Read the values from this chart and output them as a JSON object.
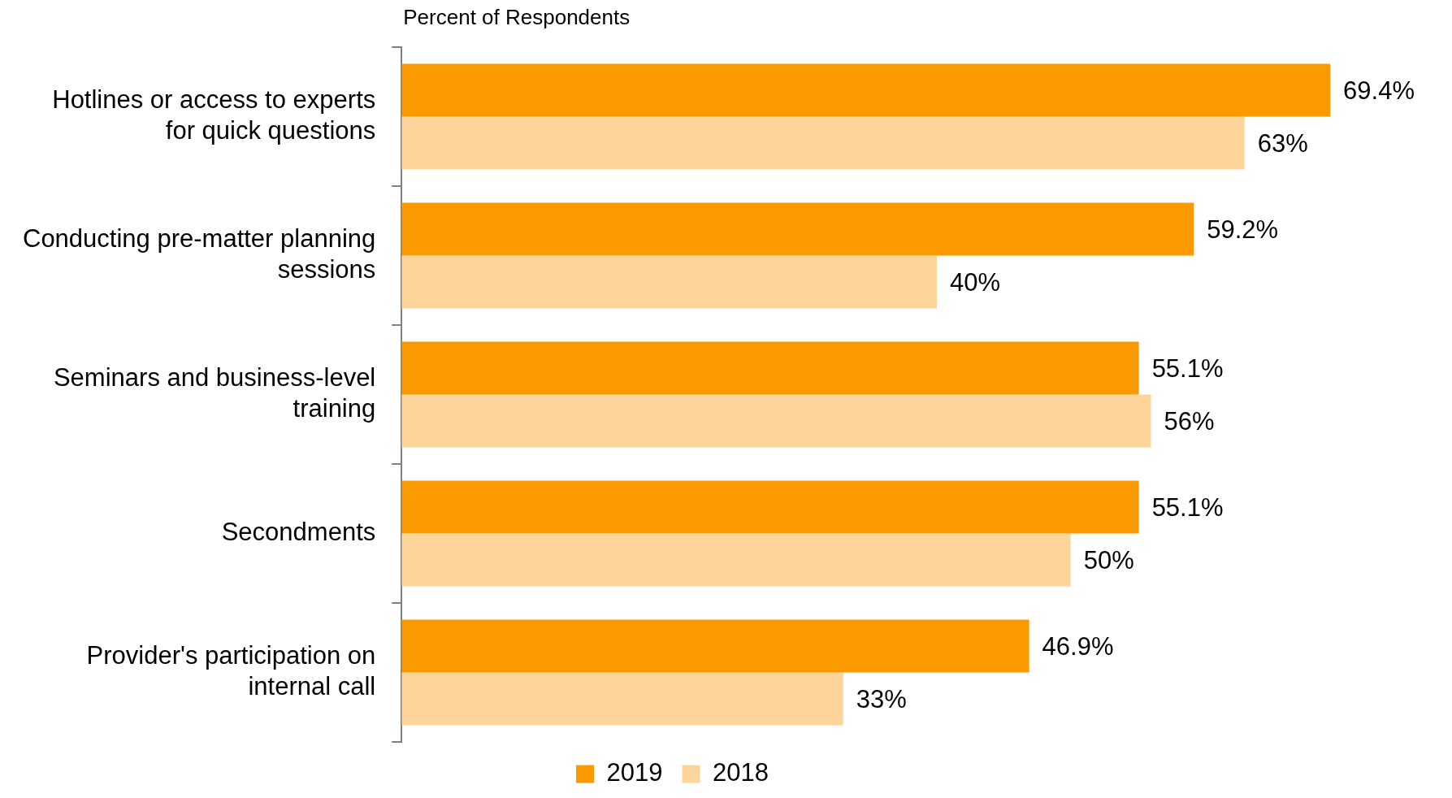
{
  "chart_data": {
    "type": "bar",
    "orientation": "horizontal",
    "xlabel": "Percent of Respondents",
    "categories": [
      "Hotlines or access to experts for quick questions",
      "Conducting pre-matter planning sessions",
      "Seminars and business-level training",
      "Secondments",
      "Provider's participation on internal call"
    ],
    "series": [
      {
        "name": "2019",
        "color": "#fb9a00",
        "values": [
          69.4,
          59.2,
          55.1,
          55.1,
          46.9
        ],
        "value_labels": [
          "69.4%",
          "59.2%",
          "55.1%",
          "55.1%",
          "46.9%"
        ]
      },
      {
        "name": "2018",
        "color": "#fdd59a",
        "values": [
          63,
          40,
          56,
          50,
          33
        ],
        "value_labels": [
          "63%",
          "40%",
          "56%",
          "50%",
          "33%"
        ]
      }
    ],
    "tick_labels": "y",
    "legend": "bottom"
  }
}
